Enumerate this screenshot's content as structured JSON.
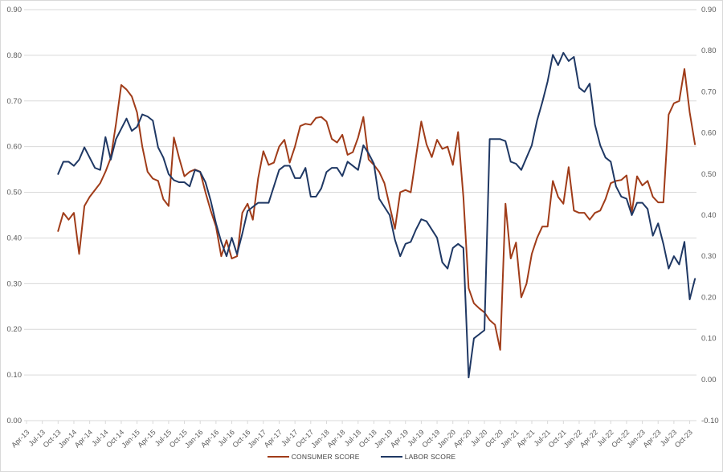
{
  "chart_data": {
    "type": "line",
    "title": "",
    "legend": {
      "position": "bottom",
      "entries": [
        "CONSUMER SCORE",
        "LABOR SCORE"
      ]
    },
    "x_axis": {
      "axis_start": "Apr-13",
      "axis_end": "Oct-23",
      "months_per_tick": 3,
      "tick_labels": [
        "Apr-13",
        "Jul-13",
        "Oct-13",
        "Jan-14",
        "Apr-14",
        "Jul-14",
        "Oct-14",
        "Jan-15",
        "Apr-15",
        "Jul-15",
        "Oct-15",
        "Jan-16",
        "Apr-16",
        "Jul-16",
        "Oct-16",
        "Jan-17",
        "Apr-17",
        "Jul-17",
        "Oct-17",
        "Jan-18",
        "Apr-18",
        "Jul-18",
        "Oct-18",
        "Jan-19",
        "Apr-19",
        "Jul-19",
        "Oct-19",
        "Jan-20",
        "Apr-20",
        "Jul-20",
        "Oct-20",
        "Jan-21",
        "Apr-21",
        "Jul-21",
        "Oct-21",
        "Jan-22",
        "Apr-22",
        "Jul-22",
        "Oct-22",
        "Jan-23",
        "Apr-23",
        "Jul-23",
        "Oct-23"
      ]
    },
    "y_axis_left": {
      "min": 0.0,
      "max": 0.9,
      "step": 0.1,
      "tick_labels": [
        "0.00",
        "0.10",
        "0.20",
        "0.30",
        "0.40",
        "0.50",
        "0.60",
        "0.70",
        "0.80",
        "0.90"
      ]
    },
    "y_axis_right": {
      "min": -0.1,
      "max": 0.9,
      "step": 0.1,
      "tick_labels": [
        "-0.10",
        "0.00",
        "0.10",
        "0.20",
        "0.30",
        "0.40",
        "0.50",
        "0.60",
        "0.70",
        "0.80",
        "0.90"
      ]
    },
    "grid": {
      "horizontal": true,
      "vertical": false
    },
    "series": [
      {
        "name": "CONSUMER SCORE",
        "color": "#A03C19",
        "axis": "left",
        "frequency": "monthly",
        "start_month": "Oct-13",
        "end_month": "Nov-23",
        "values": [
          0.415,
          0.455,
          0.44,
          0.455,
          0.365,
          0.47,
          0.49,
          0.505,
          0.52,
          0.545,
          0.575,
          0.65,
          0.735,
          0.725,
          0.71,
          0.675,
          0.6,
          0.545,
          0.53,
          0.525,
          0.485,
          0.47,
          0.62,
          0.575,
          0.535,
          0.545,
          0.55,
          0.545,
          0.5,
          0.46,
          0.425,
          0.36,
          0.395,
          0.355,
          0.36,
          0.455,
          0.475,
          0.44,
          0.53,
          0.59,
          0.56,
          0.565,
          0.6,
          0.615,
          0.565,
          0.6,
          0.645,
          0.65,
          0.648,
          0.663,
          0.665,
          0.655,
          0.617,
          0.609,
          0.626,
          0.582,
          0.588,
          0.62,
          0.665,
          0.572,
          0.56,
          0.545,
          0.52,
          0.47,
          0.42,
          0.5,
          0.505,
          0.5,
          0.578,
          0.655,
          0.605,
          0.577,
          0.615,
          0.595,
          0.6,
          0.56,
          0.632,
          0.49,
          0.29,
          0.257,
          0.246,
          0.237,
          0.22,
          0.21,
          0.155,
          0.475,
          0.355,
          0.39,
          0.27,
          0.3,
          0.365,
          0.4,
          0.425,
          0.425,
          0.525,
          0.49,
          0.475,
          0.555,
          0.46,
          0.455,
          0.455,
          0.44,
          0.455,
          0.46,
          0.485,
          0.52,
          0.525,
          0.527,
          0.537,
          0.455,
          0.535,
          0.515,
          0.525,
          0.49,
          0.478,
          0.478,
          0.67,
          0.695,
          0.7,
          0.77,
          0.675,
          0.605
        ]
      },
      {
        "name": "LABOR SCORE",
        "color": "#1F3864",
        "axis": "right",
        "frequency": "monthly",
        "start_month": "Oct-13",
        "end_month": "Nov-23",
        "values": [
          0.5,
          0.53,
          0.53,
          0.52,
          0.535,
          0.565,
          0.54,
          0.515,
          0.51,
          0.59,
          0.535,
          0.585,
          0.61,
          0.635,
          0.605,
          0.615,
          0.645,
          0.64,
          0.63,
          0.565,
          0.54,
          0.5,
          0.485,
          0.48,
          0.48,
          0.47,
          0.51,
          0.505,
          0.48,
          0.435,
          0.38,
          0.335,
          0.3,
          0.345,
          0.305,
          0.355,
          0.41,
          0.42,
          0.43,
          0.43,
          0.43,
          0.47,
          0.51,
          0.52,
          0.52,
          0.49,
          0.49,
          0.515,
          0.445,
          0.445,
          0.465,
          0.505,
          0.515,
          0.515,
          0.495,
          0.53,
          0.52,
          0.51,
          0.57,
          0.55,
          0.525,
          0.44,
          0.42,
          0.4,
          0.34,
          0.3,
          0.33,
          0.335,
          0.365,
          0.39,
          0.385,
          0.365,
          0.345,
          0.285,
          0.27,
          0.32,
          0.33,
          0.32,
          0.005,
          0.1,
          0.11,
          0.12,
          0.585,
          0.585,
          0.585,
          0.58,
          0.53,
          0.525,
          0.51,
          0.54,
          0.57,
          0.63,
          0.675,
          0.725,
          0.79,
          0.765,
          0.795,
          0.775,
          0.785,
          0.71,
          0.7,
          0.72,
          0.62,
          0.57,
          0.54,
          0.53,
          0.47,
          0.445,
          0.44,
          0.4,
          0.43,
          0.43,
          0.415,
          0.35,
          0.38,
          0.33,
          0.27,
          0.3,
          0.28,
          0.335,
          0.195,
          0.245
        ]
      }
    ],
    "styles": {
      "gridline_color": "#D9D9D9",
      "axis_line_color": "#D9D9D9",
      "axis_label_color": "#595959",
      "legend_text_color": "#404040",
      "background": "#FFFFFF",
      "border_color": "#D9D9D9"
    }
  }
}
